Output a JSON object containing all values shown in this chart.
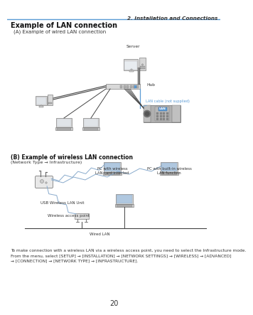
{
  "page_number": "20",
  "header_text": "2. Installation and Connections",
  "header_line_color": "#5b9bd5",
  "main_title": "Example of LAN connection",
  "section_a_title": "(A) Example of wired LAN connection",
  "section_b_title": "(B) Example of wireless LAN connection",
  "section_b_subtitle": "(Network Type → Infrastructure)",
  "footer_text": "To make connection with a wireless LAN via a wireless access point, you need to select the Infrastructure mode.\nFrom the menu, select [SETUP] → [INSTALLATION] → [NETWORK SETTINGS] → [WIRELESS] → [ADVANCED]\n→ [CONNECTION] → [NETWORK TYPE] → [INFRASTRUCTURE].",
  "bg_color": "#ffffff",
  "text_color": "#1a1a1a",
  "gray_light": "#d8d8d8",
  "gray_mid": "#b0b0b0",
  "gray_dark": "#888888",
  "gray_border": "#666666",
  "blue_label": "#5b9bd5",
  "blue_light": "#a8c8e8",
  "label_server": "Server",
  "label_hub": "Hub",
  "label_lan_cable": "LAN cable (not supplied)",
  "label_lan": "LAN",
  "label_usb_wireless": "USB Wireless LAN Unit",
  "label_wireless_ap": "Wireless access point",
  "label_wired_lan": "Wired LAN",
  "label_pc_wireless_card": "PC with wireless\nLAN card inserted",
  "label_pc_builtin": "PC with built-in wireless\nLAN function"
}
